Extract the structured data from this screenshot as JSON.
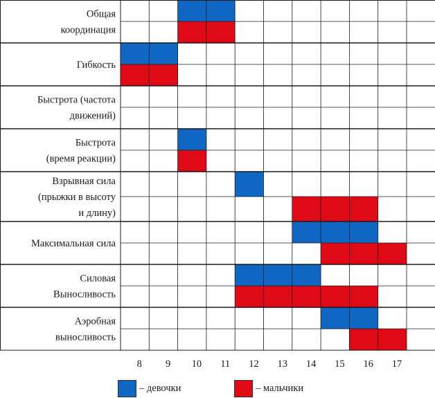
{
  "chart_data": {
    "type": "bar",
    "title": "",
    "xlabel": "",
    "ylabel": "",
    "x_ticks": [
      "8",
      "9",
      "10",
      "11",
      "12",
      "13",
      "14",
      "15",
      "16",
      "17"
    ],
    "grid": true,
    "categories": [
      {
        "label": [
          "Общая",
          "координация"
        ]
      },
      {
        "label": [
          "Гибкость"
        ]
      },
      {
        "label": [
          "Быстрота (частота",
          "движений)"
        ]
      },
      {
        "label": [
          "Быстрота",
          "(время реакции)"
        ]
      },
      {
        "label": [
          "Взрывная сила",
          "(прыжки в высоту",
          "и длину)"
        ]
      },
      {
        "label": [
          "Максимальная сила"
        ]
      },
      {
        "label": [
          "Силовая",
          "Выносливость"
        ]
      },
      {
        "label": [
          "Аэробная",
          "выносливость"
        ]
      }
    ],
    "series": [
      {
        "name": "девочки",
        "color": "#0f66c3",
        "ranges": [
          [
            9,
            11
          ],
          [
            7,
            9
          ],
          null,
          [
            9,
            10
          ],
          [
            11,
            12
          ],
          [
            13,
            16
          ],
          [
            11,
            14
          ],
          [
            14,
            16
          ]
        ]
      },
      {
        "name": "мальчики",
        "color": "#e00a17",
        "ranges": [
          [
            9,
            11
          ],
          [
            7,
            9
          ],
          null,
          [
            9,
            10
          ],
          [
            13,
            16
          ],
          [
            14,
            17
          ],
          [
            11,
            16
          ],
          [
            15,
            17
          ]
        ]
      }
    ]
  },
  "legend": {
    "girls_label": "– девочки",
    "boys_label": "– мальчики",
    "girls_color": "#0f66c3",
    "boys_color": "#e00a17"
  }
}
